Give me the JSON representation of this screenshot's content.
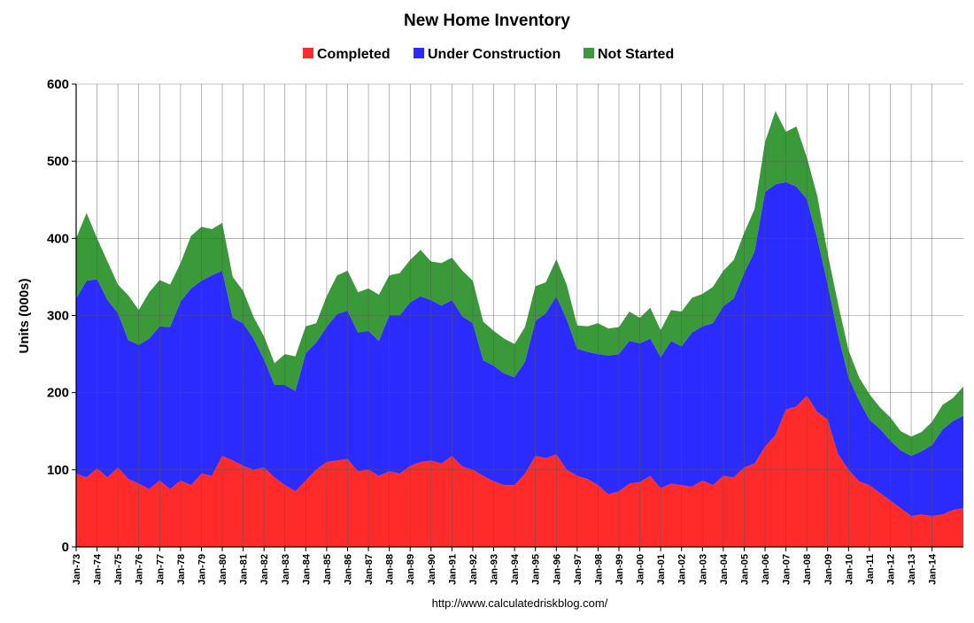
{
  "chart_data": {
    "type": "area",
    "stacked": true,
    "title": "New Home Inventory",
    "ylabel": "Units (000s)",
    "xlabel": "",
    "ylim": [
      0,
      600
    ],
    "yticks": [
      0,
      100,
      200,
      300,
      400,
      500,
      600
    ],
    "grid": true,
    "legend_position": "top-center",
    "categories": [
      "Jan-73",
      "Jan-74",
      "Jan-75",
      "Jan-76",
      "Jan-77",
      "Jan-78",
      "Jan-79",
      "Jan-80",
      "Jan-81",
      "Jan-82",
      "Jan-83",
      "Jan-84",
      "Jan-85",
      "Jan-86",
      "Jan-87",
      "Jan-88",
      "Jan-89",
      "Jan-90",
      "Jan-91",
      "Jan-92",
      "Jan-93",
      "Jan-94",
      "Jan-95",
      "Jan-96",
      "Jan-97",
      "Jan-98",
      "Jan-99",
      "Jan-00",
      "Jan-01",
      "Jan-02",
      "Jan-03",
      "Jan-04",
      "Jan-05",
      "Jan-06",
      "Jan-07",
      "Jan-08",
      "Jan-09",
      "Jan-10",
      "Jan-11",
      "Jan-12",
      "Jan-13",
      "Jan-14"
    ],
    "x_end": 42.5,
    "x": [
      0,
      0.5,
      1,
      1.5,
      2,
      2.5,
      3,
      3.5,
      4,
      4.5,
      5,
      5.5,
      6,
      6.5,
      7,
      7.5,
      8,
      8.5,
      9,
      9.5,
      10,
      10.5,
      11,
      11.5,
      12,
      12.5,
      13,
      13.5,
      14,
      14.5,
      15,
      15.5,
      16,
      16.5,
      17,
      17.5,
      18,
      18.5,
      19,
      19.5,
      20,
      20.5,
      21,
      21.5,
      22,
      22.5,
      23,
      23.5,
      24,
      24.5,
      25,
      25.5,
      26,
      26.5,
      27,
      27.5,
      28,
      28.5,
      29,
      29.5,
      30,
      30.5,
      31,
      31.5,
      32,
      32.5,
      33,
      33.5,
      34,
      34.5,
      35,
      35.5,
      36,
      36.5,
      37,
      37.5,
      38,
      38.5,
      39,
      39.5,
      40,
      40.5,
      41,
      41.5,
      42,
      42.5
    ],
    "series": [
      {
        "name": "Completed",
        "color": "#ff2b2b",
        "values": [
          95,
          90,
          102,
          90,
          103,
          88,
          82,
          75,
          86,
          75,
          86,
          80,
          95,
          92,
          118,
          112,
          105,
          100,
          103,
          90,
          80,
          72,
          86,
          100,
          110,
          112,
          114,
          98,
          100,
          92,
          98,
          95,
          105,
          110,
          112,
          108,
          118,
          104,
          100,
          92,
          85,
          80,
          80,
          95,
          118,
          115,
          120,
          100,
          92,
          88,
          80,
          68,
          72,
          82,
          84,
          92,
          76,
          82,
          80,
          78,
          86,
          80,
          92,
          90,
          103,
          108,
          130,
          145,
          178,
          182,
          196,
          175,
          165,
          120,
          100,
          85,
          80,
          70,
          60,
          50,
          40,
          42,
          40,
          42,
          48,
          50
        ]
      },
      {
        "name": "Under Construction",
        "color": "#2b2bff",
        "values": [
          227,
          255,
          245,
          230,
          200,
          180,
          180,
          195,
          200,
          210,
          232,
          255,
          250,
          260,
          240,
          185,
          185,
          170,
          140,
          120,
          130,
          130,
          165,
          165,
          175,
          190,
          192,
          180,
          180,
          175,
          202,
          205,
          212,
          215,
          208,
          205,
          202,
          195,
          190,
          150,
          150,
          145,
          140,
          145,
          175,
          188,
          205,
          195,
          165,
          165,
          170,
          180,
          178,
          185,
          180,
          178,
          170,
          185,
          180,
          200,
          200,
          210,
          220,
          232,
          252,
          275,
          330,
          325,
          295,
          285,
          255,
          225,
          175,
          155,
          120,
          105,
          85,
          83,
          78,
          75,
          78,
          82,
          92,
          110,
          115,
          120
        ]
      },
      {
        "name": "Not Started",
        "color": "#3a9a3a",
        "values": [
          78,
          88,
          53,
          50,
          37,
          58,
          45,
          60,
          60,
          55,
          50,
          68,
          70,
          60,
          62,
          53,
          42,
          28,
          30,
          28,
          40,
          45,
          35,
          25,
          40,
          50,
          52,
          52,
          55,
          60,
          52,
          55,
          55,
          60,
          50,
          55,
          55,
          59,
          55,
          50,
          45,
          45,
          43,
          45,
          45,
          40,
          48,
          45,
          30,
          33,
          40,
          35,
          35,
          38,
          33,
          40,
          35,
          40,
          45,
          45,
          42,
          47,
          46,
          50,
          52,
          55,
          65,
          95,
          65,
          78,
          54,
          55,
          40,
          40,
          35,
          30,
          33,
          28,
          30,
          25,
          25,
          25,
          30,
          32,
          30,
          38
        ]
      }
    ]
  },
  "source_text": "http://www.calculatedriskblog.com/"
}
